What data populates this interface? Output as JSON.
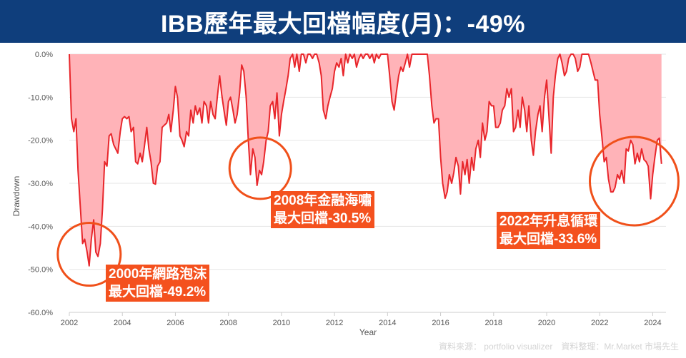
{
  "title": "IBB歷年最大回檔幅度(月)：-49%",
  "footer": "資料來源： portfolio visualizer　資料整理：Mr.Market 市場先生",
  "colors": {
    "line": "#e8262b",
    "fill": "#ffb3b8",
    "circle": "#f0501a",
    "label_bg": "#f4511e",
    "title_bg": "#0f3e7c"
  },
  "annotations": [
    {
      "line1": "2000年網路泡沫",
      "line2": "最大回檔-49.2%",
      "cx": 2002.75,
      "cy": -46.5
    },
    {
      "line1": "2008年金融海嘯",
      "line2": "最大回檔-30.5%",
      "cx": 2009.2,
      "cy": -26.5
    },
    {
      "line1": "2022年升息循環",
      "line2": "最大回檔-33.6%",
      "cx": 2023.3,
      "cy": -29.5
    }
  ],
  "chart_data": {
    "type": "area",
    "title": "IBB歷年最大回檔幅度(月)：-49%",
    "xlabel": "Year",
    "ylabel": "Drawdown",
    "xlim": [
      2002,
      2024.5
    ],
    "ylim": [
      -60,
      0
    ],
    "xticks": [
      "2002",
      "2004",
      "2006",
      "2008",
      "2010",
      "2012",
      "2014",
      "2016",
      "2018",
      "2020",
      "2022",
      "2024"
    ],
    "yticks": [
      "0.0%",
      "-10.0%",
      "-20.0%",
      "-30.0%",
      "-40.0%",
      "-50.0%",
      "-60.0%"
    ],
    "grid": "horizontal",
    "series": [
      {
        "points": [
          [
            2002.0,
            0
          ],
          [
            2002.08,
            -15
          ],
          [
            2002.17,
            -18
          ],
          [
            2002.25,
            -15
          ],
          [
            2002.33,
            -27
          ],
          [
            2002.42,
            -36
          ],
          [
            2002.5,
            -44
          ],
          [
            2002.58,
            -43
          ],
          [
            2002.67,
            -46
          ],
          [
            2002.75,
            -49.2
          ],
          [
            2002.83,
            -43
          ],
          [
            2002.92,
            -38.5
          ],
          [
            2003.0,
            -46
          ],
          [
            2003.08,
            -47
          ],
          [
            2003.17,
            -44
          ],
          [
            2003.25,
            -36
          ],
          [
            2003.33,
            -25
          ],
          [
            2003.42,
            -26
          ],
          [
            2003.5,
            -19
          ],
          [
            2003.58,
            -18.5
          ],
          [
            2003.67,
            -21
          ],
          [
            2003.75,
            -22
          ],
          [
            2003.83,
            -23
          ],
          [
            2003.92,
            -18
          ],
          [
            2004.0,
            -15
          ],
          [
            2004.08,
            -14.5
          ],
          [
            2004.17,
            -15
          ],
          [
            2004.25,
            -14.5
          ],
          [
            2004.33,
            -18
          ],
          [
            2004.42,
            -17
          ],
          [
            2004.5,
            -25
          ],
          [
            2004.58,
            -25.5
          ],
          [
            2004.67,
            -23
          ],
          [
            2004.75,
            -25
          ],
          [
            2004.83,
            -21.5
          ],
          [
            2004.92,
            -17
          ],
          [
            2005.0,
            -22
          ],
          [
            2005.08,
            -25
          ],
          [
            2005.17,
            -30
          ],
          [
            2005.25,
            -30.2
          ],
          [
            2005.33,
            -26
          ],
          [
            2005.42,
            -25
          ],
          [
            2005.5,
            -17
          ],
          [
            2005.58,
            -16.5
          ],
          [
            2005.67,
            -16
          ],
          [
            2005.75,
            -14
          ],
          [
            2005.83,
            -18
          ],
          [
            2005.92,
            -13
          ],
          [
            2006.0,
            -7.5
          ],
          [
            2006.08,
            -10
          ],
          [
            2006.17,
            -19
          ],
          [
            2006.25,
            -20
          ],
          [
            2006.33,
            -21.5
          ],
          [
            2006.42,
            -18
          ],
          [
            2006.5,
            -19
          ],
          [
            2006.58,
            -13
          ],
          [
            2006.67,
            -16
          ],
          [
            2006.75,
            -12
          ],
          [
            2006.83,
            -14
          ],
          [
            2006.92,
            -12.5
          ],
          [
            2007.0,
            -16
          ],
          [
            2007.08,
            -11
          ],
          [
            2007.17,
            -12
          ],
          [
            2007.25,
            -16
          ],
          [
            2007.33,
            -11
          ],
          [
            2007.42,
            -14
          ],
          [
            2007.5,
            -15
          ],
          [
            2007.58,
            -10
          ],
          [
            2007.67,
            -5
          ],
          [
            2007.75,
            -9.5
          ],
          [
            2007.83,
            -13
          ],
          [
            2007.92,
            -16.5
          ],
          [
            2008.0,
            -11
          ],
          [
            2008.08,
            -10
          ],
          [
            2008.17,
            -13
          ],
          [
            2008.25,
            -16
          ],
          [
            2008.33,
            -14
          ],
          [
            2008.42,
            -9
          ],
          [
            2008.5,
            -2.5
          ],
          [
            2008.58,
            -4
          ],
          [
            2008.67,
            -10
          ],
          [
            2008.75,
            -20
          ],
          [
            2008.83,
            -28
          ],
          [
            2008.92,
            -22
          ],
          [
            2009.0,
            -24
          ],
          [
            2009.08,
            -30.5
          ],
          [
            2009.17,
            -27
          ],
          [
            2009.25,
            -28
          ],
          [
            2009.33,
            -25
          ],
          [
            2009.42,
            -20
          ],
          [
            2009.5,
            -18
          ],
          [
            2009.58,
            -12
          ],
          [
            2009.67,
            -11
          ],
          [
            2009.75,
            -15
          ],
          [
            2009.83,
            -9
          ],
          [
            2009.92,
            -19
          ],
          [
            2010.0,
            -14
          ],
          [
            2010.08,
            -11
          ],
          [
            2010.17,
            -8
          ],
          [
            2010.25,
            -5
          ],
          [
            2010.33,
            -1
          ],
          [
            2010.42,
            0
          ],
          [
            2010.5,
            -3
          ],
          [
            2010.58,
            0
          ],
          [
            2010.67,
            -4
          ],
          [
            2010.75,
            0
          ],
          [
            2010.83,
            0
          ],
          [
            2010.92,
            -2
          ],
          [
            2011.0,
            0
          ],
          [
            2011.08,
            0
          ],
          [
            2011.17,
            -1
          ],
          [
            2011.25,
            0
          ],
          [
            2011.33,
            0
          ],
          [
            2011.42,
            -2
          ],
          [
            2011.5,
            -5
          ],
          [
            2011.58,
            -13
          ],
          [
            2011.67,
            -15
          ],
          [
            2011.75,
            -12
          ],
          [
            2011.83,
            -10
          ],
          [
            2011.92,
            -8
          ],
          [
            2012.0,
            -4
          ],
          [
            2012.08,
            -2
          ],
          [
            2012.17,
            -3
          ],
          [
            2012.25,
            -1
          ],
          [
            2012.33,
            -5
          ],
          [
            2012.42,
            0
          ],
          [
            2012.5,
            -2
          ],
          [
            2012.58,
            0
          ],
          [
            2012.67,
            -1
          ],
          [
            2012.75,
            0
          ],
          [
            2012.83,
            -3
          ],
          [
            2012.92,
            -1
          ],
          [
            2013.0,
            0
          ],
          [
            2013.08,
            -1
          ],
          [
            2013.17,
            0
          ],
          [
            2013.25,
            0
          ],
          [
            2013.33,
            -1
          ],
          [
            2013.42,
            0
          ],
          [
            2013.5,
            -2
          ],
          [
            2013.58,
            0
          ],
          [
            2013.67,
            -1
          ],
          [
            2013.75,
            0
          ],
          [
            2013.83,
            0
          ],
          [
            2013.92,
            0
          ],
          [
            2014.0,
            0
          ],
          [
            2014.08,
            -5
          ],
          [
            2014.17,
            -11
          ],
          [
            2014.25,
            -13
          ],
          [
            2014.33,
            -9
          ],
          [
            2014.42,
            -5
          ],
          [
            2014.5,
            -3
          ],
          [
            2014.58,
            -4
          ],
          [
            2014.67,
            -2
          ],
          [
            2014.75,
            0
          ],
          [
            2014.83,
            -3
          ],
          [
            2014.92,
            0
          ],
          [
            2015.0,
            0
          ],
          [
            2015.08,
            0
          ],
          [
            2015.17,
            0
          ],
          [
            2015.25,
            0
          ],
          [
            2015.33,
            0
          ],
          [
            2015.42,
            0
          ],
          [
            2015.5,
            0
          ],
          [
            2015.58,
            -5
          ],
          [
            2015.67,
            -12
          ],
          [
            2015.75,
            -16
          ],
          [
            2015.83,
            -15
          ],
          [
            2015.92,
            -15
          ],
          [
            2016.0,
            -24
          ],
          [
            2016.08,
            -30
          ],
          [
            2016.17,
            -33.5
          ],
          [
            2016.25,
            -32
          ],
          [
            2016.33,
            -28
          ],
          [
            2016.42,
            -30
          ],
          [
            2016.5,
            -27.5
          ],
          [
            2016.58,
            -24
          ],
          [
            2016.67,
            -26
          ],
          [
            2016.75,
            -32.5
          ],
          [
            2016.83,
            -25
          ],
          [
            2016.92,
            -28
          ],
          [
            2017.0,
            -24.5
          ],
          [
            2017.08,
            -30
          ],
          [
            2017.17,
            -24
          ],
          [
            2017.25,
            -27
          ],
          [
            2017.33,
            -22
          ],
          [
            2017.42,
            -20
          ],
          [
            2017.5,
            -24
          ],
          [
            2017.58,
            -16
          ],
          [
            2017.67,
            -20
          ],
          [
            2017.75,
            -18
          ],
          [
            2017.83,
            -11
          ],
          [
            2017.92,
            -12
          ],
          [
            2018.0,
            -12
          ],
          [
            2018.08,
            -17
          ],
          [
            2018.17,
            -17
          ],
          [
            2018.25,
            -16
          ],
          [
            2018.33,
            -13
          ],
          [
            2018.42,
            -12
          ],
          [
            2018.5,
            -8
          ],
          [
            2018.58,
            -10
          ],
          [
            2018.67,
            -8
          ],
          [
            2018.75,
            -18
          ],
          [
            2018.83,
            -17
          ],
          [
            2018.92,
            -13
          ],
          [
            2019.0,
            -17
          ],
          [
            2019.08,
            -10
          ],
          [
            2019.17,
            -13
          ],
          [
            2019.25,
            -18
          ],
          [
            2019.33,
            -12
          ],
          [
            2019.42,
            -20
          ],
          [
            2019.5,
            -23.5
          ],
          [
            2019.58,
            -18
          ],
          [
            2019.67,
            -14
          ],
          [
            2019.75,
            -12
          ],
          [
            2019.83,
            -18
          ],
          [
            2019.92,
            -10
          ],
          [
            2020.0,
            -6
          ],
          [
            2020.08,
            -14
          ],
          [
            2020.17,
            -23
          ],
          [
            2020.25,
            -10
          ],
          [
            2020.33,
            -5
          ],
          [
            2020.42,
            -1
          ],
          [
            2020.5,
            0
          ],
          [
            2020.58,
            -2
          ],
          [
            2020.67,
            -5
          ],
          [
            2020.75,
            -4
          ],
          [
            2020.83,
            -1
          ],
          [
            2020.92,
            0
          ],
          [
            2021.0,
            0
          ],
          [
            2021.08,
            -1
          ],
          [
            2021.17,
            -4
          ],
          [
            2021.25,
            -3
          ],
          [
            2021.33,
            0
          ],
          [
            2021.42,
            0
          ],
          [
            2021.5,
            0
          ],
          [
            2021.58,
            0
          ],
          [
            2021.67,
            -2
          ],
          [
            2021.75,
            -4
          ],
          [
            2021.83,
            -6
          ],
          [
            2021.92,
            -6
          ],
          [
            2022.0,
            -14
          ],
          [
            2022.08,
            -19
          ],
          [
            2022.17,
            -25
          ],
          [
            2022.25,
            -24
          ],
          [
            2022.33,
            -29
          ],
          [
            2022.42,
            -32
          ],
          [
            2022.5,
            -32
          ],
          [
            2022.58,
            -31
          ],
          [
            2022.67,
            -28
          ],
          [
            2022.75,
            -29
          ],
          [
            2022.83,
            -27
          ],
          [
            2022.92,
            -30
          ],
          [
            2023.0,
            -22
          ],
          [
            2023.08,
            -22.5
          ],
          [
            2023.17,
            -20
          ],
          [
            2023.25,
            -21
          ],
          [
            2023.33,
            -25.5
          ],
          [
            2023.42,
            -23
          ],
          [
            2023.5,
            -25
          ],
          [
            2023.58,
            -22
          ],
          [
            2023.67,
            -24.5
          ],
          [
            2023.75,
            -25
          ],
          [
            2023.83,
            -26
          ],
          [
            2023.92,
            -33.6
          ],
          [
            2024.0,
            -28
          ],
          [
            2024.08,
            -24
          ],
          [
            2024.17,
            -20
          ],
          [
            2024.25,
            -19.5
          ],
          [
            2024.33,
            -25.5
          ]
        ]
      }
    ]
  }
}
